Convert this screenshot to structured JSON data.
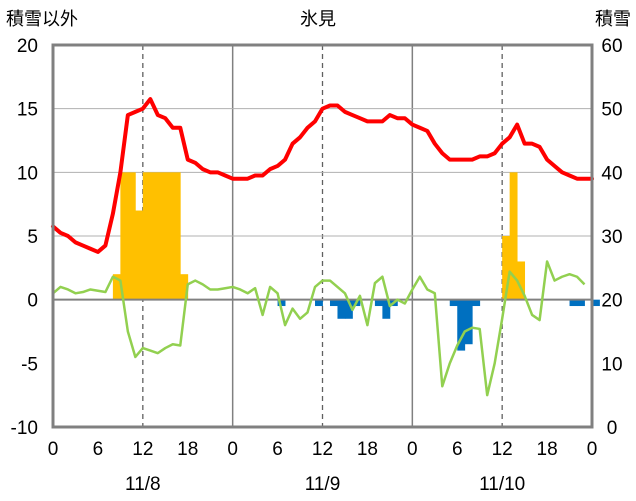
{
  "chart_data": {
    "type": "bar+line",
    "title": "氷見",
    "left_axis_title": "積雪以外",
    "right_axis_title": "積雪",
    "left_axis": {
      "ylim": [
        -10,
        20
      ],
      "ticks": [
        "-10",
        "-5",
        "0",
        "5",
        "10",
        "15",
        "20"
      ]
    },
    "right_axis": {
      "ylim": [
        0,
        60
      ],
      "ticks": [
        "0",
        "10",
        "20",
        "30",
        "40",
        "50",
        "60"
      ]
    },
    "x_range_hours": [
      0,
      72
    ],
    "x_tick_labels": [
      "0",
      "6",
      "12",
      "18",
      "0",
      "6",
      "12",
      "18",
      "0",
      "6",
      "12",
      "18",
      "0"
    ],
    "date_labels": [
      "11/8",
      "11/9",
      "11/10"
    ],
    "grid": "dashed vertical lines at 12h, solid at day boundaries",
    "colors": {
      "snow_depth": "#ff0000",
      "snowfall": "#ffc000",
      "snow_decrease": "#0070c0",
      "temperature": "#92d050",
      "bottom_line": "#7030a0"
    },
    "series": [
      {
        "key": "snow_depth",
        "type": "line",
        "axis": "right",
        "values": [
          31.5,
          30.5,
          30.0,
          29.0,
          28.5,
          28.0,
          27.5,
          28.5,
          33.5,
          40.0,
          49.0,
          49.5,
          50.0,
          51.5,
          49.0,
          48.5,
          47.0,
          47.0,
          42.0,
          41.5,
          40.5,
          40.0,
          40.0,
          39.5,
          39.0,
          39.0,
          39.0,
          39.5,
          39.5,
          40.5,
          41.0,
          42.0,
          44.5,
          45.5,
          47.0,
          48.0,
          50.0,
          50.5,
          50.5,
          49.5,
          49.0,
          48.5,
          48.0,
          48.0,
          48.0,
          49.0,
          48.5,
          48.5,
          47.5,
          47.0,
          46.5,
          44.5,
          43.0,
          42.0,
          42.0,
          42.0,
          42.0,
          42.5,
          42.5,
          43.0,
          44.5,
          45.5,
          47.5,
          44.5,
          44.5,
          44.0,
          42.0,
          41.0,
          40.0,
          39.5,
          39.0,
          39.0,
          39.0
        ]
      },
      {
        "key": "snowfall",
        "type": "bar",
        "axis": "left",
        "values": [
          0,
          0,
          0,
          0,
          0,
          0,
          0,
          0,
          2,
          10,
          10,
          7,
          10,
          10,
          10,
          10,
          10,
          2,
          0,
          0,
          0,
          0,
          0,
          0,
          0,
          0,
          0,
          0,
          0,
          0,
          0,
          0,
          0,
          0,
          0,
          0,
          0,
          0,
          0,
          0,
          0,
          0,
          0,
          0,
          0,
          0,
          0,
          0,
          0,
          0,
          0,
          0,
          0,
          0,
          0,
          0,
          0,
          0,
          0,
          0,
          5,
          10,
          3,
          0,
          0,
          0,
          0,
          0,
          0,
          0,
          0,
          0
        ]
      },
      {
        "key": "snow_decrease",
        "type": "bar",
        "axis": "left",
        "values": [
          0,
          0,
          0,
          0,
          0,
          0,
          0,
          0,
          0,
          0,
          0,
          0,
          0,
          0,
          0,
          0,
          0,
          0,
          0,
          0,
          0,
          0,
          0,
          0,
          0,
          0,
          0,
          0,
          0,
          0,
          -0.5,
          0,
          0,
          0,
          0,
          -0.5,
          0,
          -0.5,
          -1.5,
          -1.5,
          -0.5,
          0,
          0,
          -0.5,
          -1.5,
          -0.5,
          0,
          0,
          0,
          0,
          0,
          0,
          0,
          -0.5,
          -4,
          -3.5,
          -0.5,
          0,
          0,
          0,
          0,
          0,
          0,
          0,
          0,
          0,
          0,
          0,
          0,
          -0.5,
          -0.5,
          0,
          -0.5
        ]
      },
      {
        "key": "temperature",
        "type": "line",
        "axis": "left",
        "values": [
          0.5,
          1.0,
          0.8,
          0.5,
          0.6,
          0.8,
          0.7,
          0.6,
          1.8,
          1.5,
          -2.5,
          -4.5,
          -3.8,
          -4.0,
          -4.2,
          -3.8,
          -3.5,
          -3.6,
          1.2,
          1.5,
          1.2,
          0.8,
          0.8,
          0.9,
          1.0,
          0.8,
          0.5,
          0.9,
          -1.2,
          1.0,
          0.5,
          -2.0,
          -0.7,
          -1.5,
          -1.0,
          1.0,
          1.5,
          1.5,
          1.0,
          0.5,
          -0.8,
          0.3,
          -2.0,
          1.3,
          1.8,
          -0.5,
          0.0,
          -0.3,
          0.8,
          1.8,
          0.8,
          0.5,
          -6.8,
          -5.0,
          -3.6,
          -2.5,
          -2.2,
          -2.3,
          -7.5,
          -5.0,
          -1.5,
          2.2,
          1.5,
          0.3,
          -1.2,
          -1.6,
          3.0,
          1.5,
          1.8,
          2.0,
          1.8,
          1.2
        ]
      },
      {
        "key": "bottom_line",
        "type": "line",
        "axis": "left",
        "values": [
          -10,
          -10
        ]
      }
    ]
  }
}
